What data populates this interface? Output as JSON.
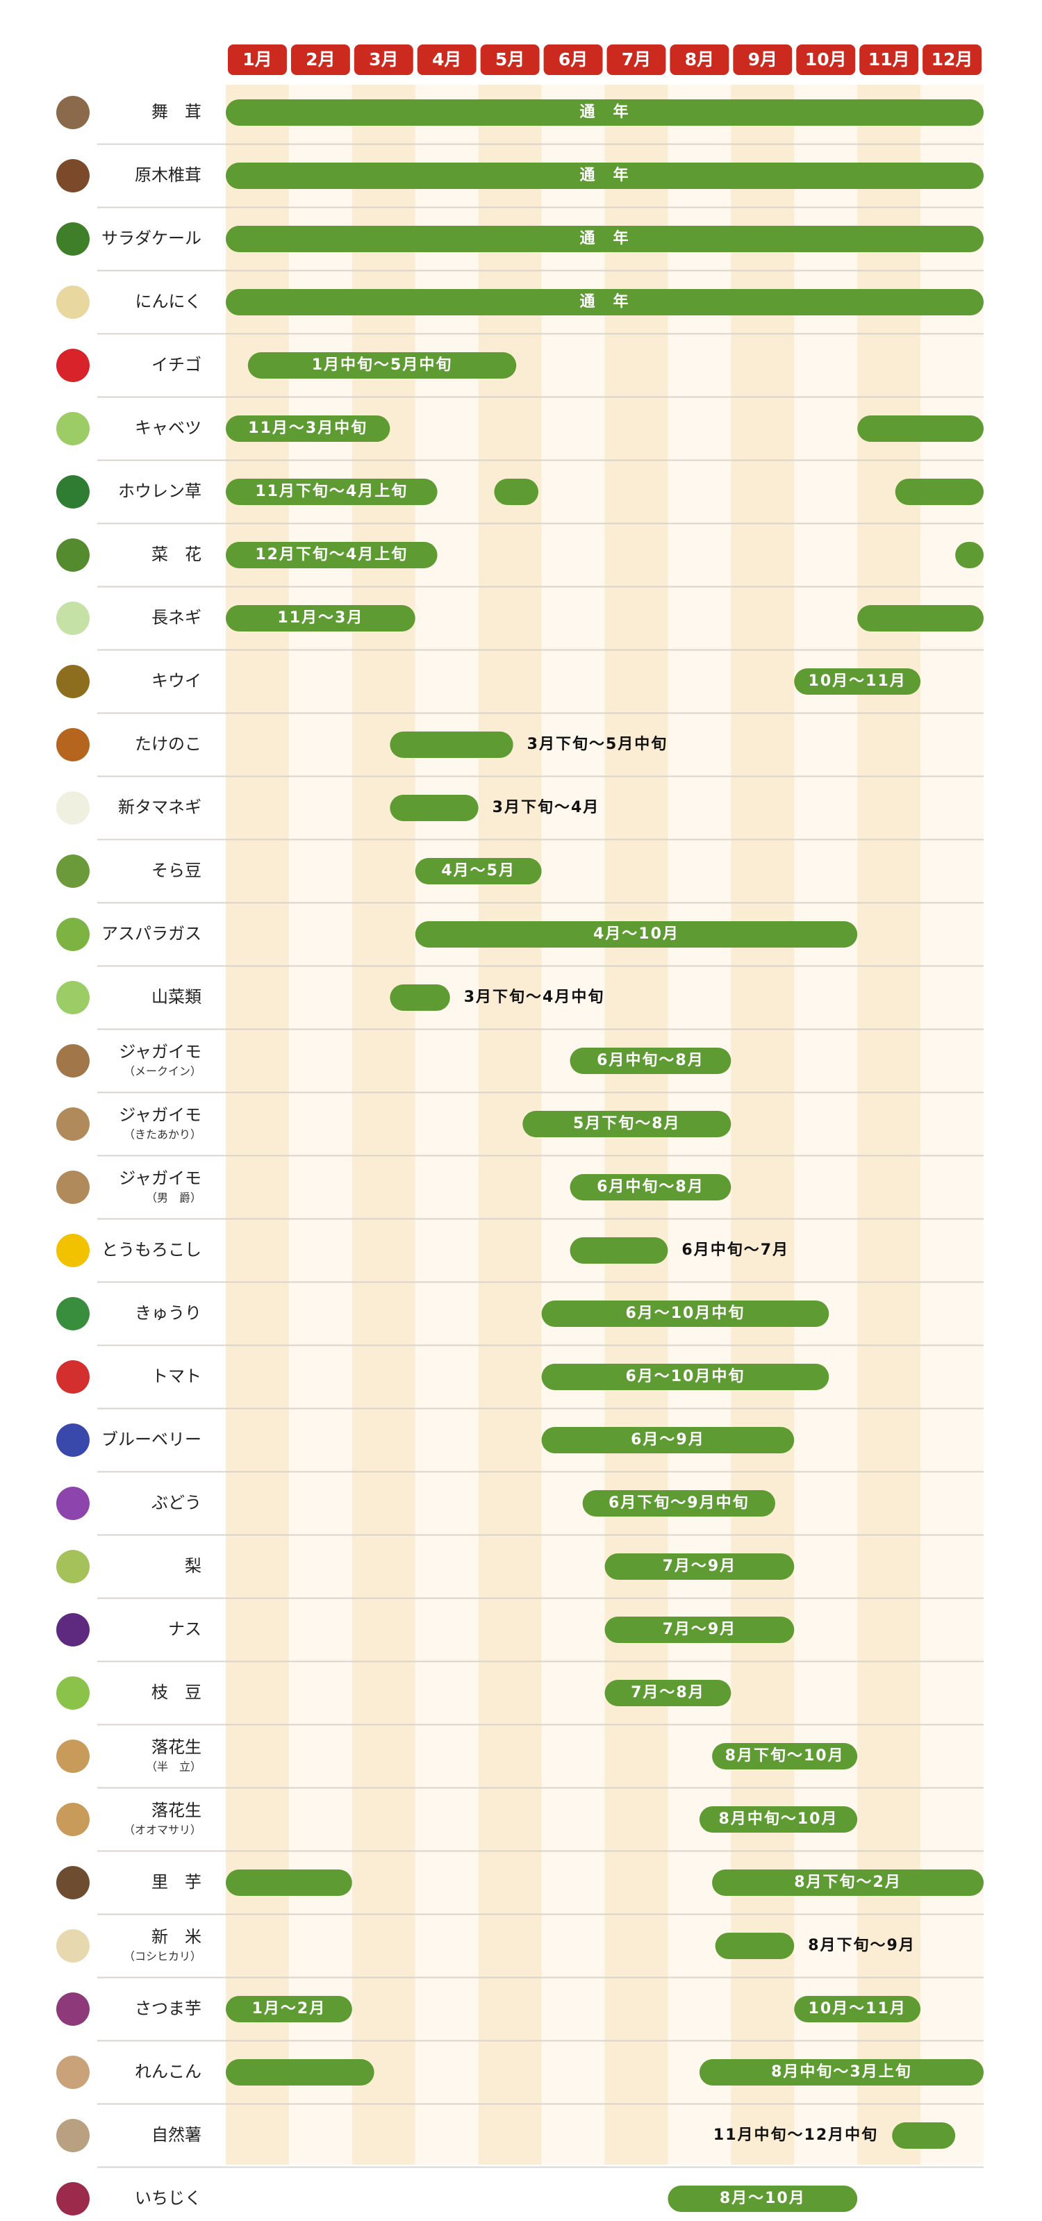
{
  "chart_data": {
    "type": "gantt",
    "xlim": [
      0,
      12
    ],
    "categories": [
      "1月",
      "2月",
      "3月",
      "4月",
      "5月",
      "6月",
      "7月",
      "8月",
      "9月",
      "10月",
      "11月",
      "12月"
    ],
    "rows": [
      {
        "name": "舞　茸",
        "bars": [
          {
            "start": 0,
            "end": 12,
            "label": "通　年"
          }
        ]
      },
      {
        "name": "原木椎茸",
        "bars": [
          {
            "start": 0,
            "end": 12,
            "label": "通　年"
          }
        ]
      },
      {
        "name": "サラダケール",
        "bars": [
          {
            "start": 0,
            "end": 12,
            "label": "通　年"
          }
        ]
      },
      {
        "name": "にんにく",
        "bars": [
          {
            "start": 0,
            "end": 12,
            "label": "通　年"
          }
        ]
      },
      {
        "name": "イチゴ",
        "bars": [
          {
            "start": 0.35,
            "end": 4.6,
            "label": "1月中旬～5月中旬"
          }
        ]
      },
      {
        "name": "キャベツ",
        "bars": [
          {
            "start": 0,
            "end": 2.6,
            "label": "11月～3月中旬"
          },
          {
            "start": 10,
            "end": 12
          }
        ]
      },
      {
        "name": "ホウレン草",
        "bars": [
          {
            "start": 0,
            "end": 3.35,
            "label": "11月下旬～4月上旬"
          },
          {
            "start": 4.25,
            "end": 4.95
          },
          {
            "start": 10.6,
            "end": 12
          }
        ]
      },
      {
        "name": "菜　花",
        "bars": [
          {
            "start": 0,
            "end": 3.35,
            "label": "12月下旬～4月上旬"
          },
          {
            "start": 11.55,
            "end": 12
          }
        ]
      },
      {
        "name": "長ネギ",
        "bars": [
          {
            "start": 0,
            "end": 3,
            "label": "11月～3月"
          },
          {
            "start": 10,
            "end": 12
          }
        ]
      },
      {
        "name": "キウイ",
        "bars": [
          {
            "start": 9,
            "end": 11,
            "label": "10月～11月"
          }
        ]
      },
      {
        "name": "たけのこ",
        "bars": [
          {
            "start": 2.6,
            "end": 4.55,
            "label": "3月下旬～5月中旬"
          }
        ]
      },
      {
        "name": "新タマネギ",
        "bars": [
          {
            "start": 2.6,
            "end": 4,
            "label": "3月下旬～4月"
          }
        ]
      },
      {
        "name": "そら豆",
        "bars": [
          {
            "start": 3,
            "end": 5,
            "label": "4月～5月"
          }
        ]
      },
      {
        "name": "アスパラガス",
        "bars": [
          {
            "start": 3,
            "end": 10,
            "label": "4月～10月"
          }
        ]
      },
      {
        "name": "山菜類",
        "bars": [
          {
            "start": 2.6,
            "end": 3.55,
            "label": "3月下旬～4月中旬"
          }
        ]
      },
      {
        "name": "ジャガイモ",
        "note": "（メークイン）",
        "bars": [
          {
            "start": 5.45,
            "end": 8,
            "label": "6月中旬～8月"
          }
        ]
      },
      {
        "name": "ジャガイモ",
        "note": "（きたあかり）",
        "bars": [
          {
            "start": 4.7,
            "end": 8,
            "label": "5月下旬～8月"
          }
        ]
      },
      {
        "name": "ジャガイモ",
        "note": "（男　爵）",
        "bars": [
          {
            "start": 5.45,
            "end": 8,
            "label": "6月中旬～8月"
          }
        ]
      },
      {
        "name": "とうもろこし",
        "bars": [
          {
            "start": 5.45,
            "end": 7,
            "label": "6月中旬～7月"
          }
        ]
      },
      {
        "name": "きゅうり",
        "bars": [
          {
            "start": 5,
            "end": 9.55,
            "label": "6月～10月中旬"
          }
        ]
      },
      {
        "name": "トマト",
        "bars": [
          {
            "start": 5,
            "end": 9.55,
            "label": "6月～10月中旬"
          }
        ]
      },
      {
        "name": "ブルーベリー",
        "bars": [
          {
            "start": 5,
            "end": 9,
            "label": "6月～9月"
          }
        ]
      },
      {
        "name": "ぶどう",
        "bars": [
          {
            "start": 5.65,
            "end": 8.7,
            "label": "6月下旬～9月中旬"
          }
        ]
      },
      {
        "name": "梨",
        "bars": [
          {
            "start": 6,
            "end": 9,
            "label": "7月～9月"
          }
        ]
      },
      {
        "name": "ナス",
        "bars": [
          {
            "start": 6,
            "end": 9,
            "label": "7月～9月"
          }
        ]
      },
      {
        "name": "枝　豆",
        "bars": [
          {
            "start": 6,
            "end": 8,
            "label": "7月～8月"
          }
        ]
      },
      {
        "name": "落花生",
        "note": "（半　立）",
        "bars": [
          {
            "start": 7.7,
            "end": 10,
            "label": "8月下旬～10月"
          }
        ]
      },
      {
        "name": "落花生",
        "note": "（オオマサリ）",
        "bars": [
          {
            "start": 7.5,
            "end": 10,
            "label": "8月中旬～10月"
          }
        ]
      },
      {
        "name": "里　芋",
        "bars": [
          {
            "start": 0,
            "end": 2
          },
          {
            "start": 7.7,
            "end": 12,
            "label": "8月下旬～2月"
          }
        ]
      },
      {
        "name": "新　米",
        "note": "（コシヒカリ）",
        "bars": [
          {
            "start": 7.75,
            "end": 9,
            "label": "8月下旬～9月"
          }
        ]
      },
      {
        "name": "さつま芋",
        "bars": [
          {
            "start": 0,
            "end": 2,
            "label": "1月～2月"
          },
          {
            "start": 9,
            "end": 11,
            "label": "10月～11月"
          }
        ]
      },
      {
        "name": "れんこん",
        "bars": [
          {
            "start": 0,
            "end": 2.35
          },
          {
            "start": 7.5,
            "end": 12,
            "label": "8月中旬～3月上旬"
          }
        ]
      },
      {
        "name": "自然薯",
        "bars": [
          {
            "start": 10.55,
            "end": 11.55,
            "label": "11月中旬～12月中旬"
          }
        ]
      },
      {
        "name": "いちじく",
        "bars": [
          {
            "start": 7,
            "end": 10,
            "label": "8月～10月"
          }
        ]
      }
    ]
  }
}
